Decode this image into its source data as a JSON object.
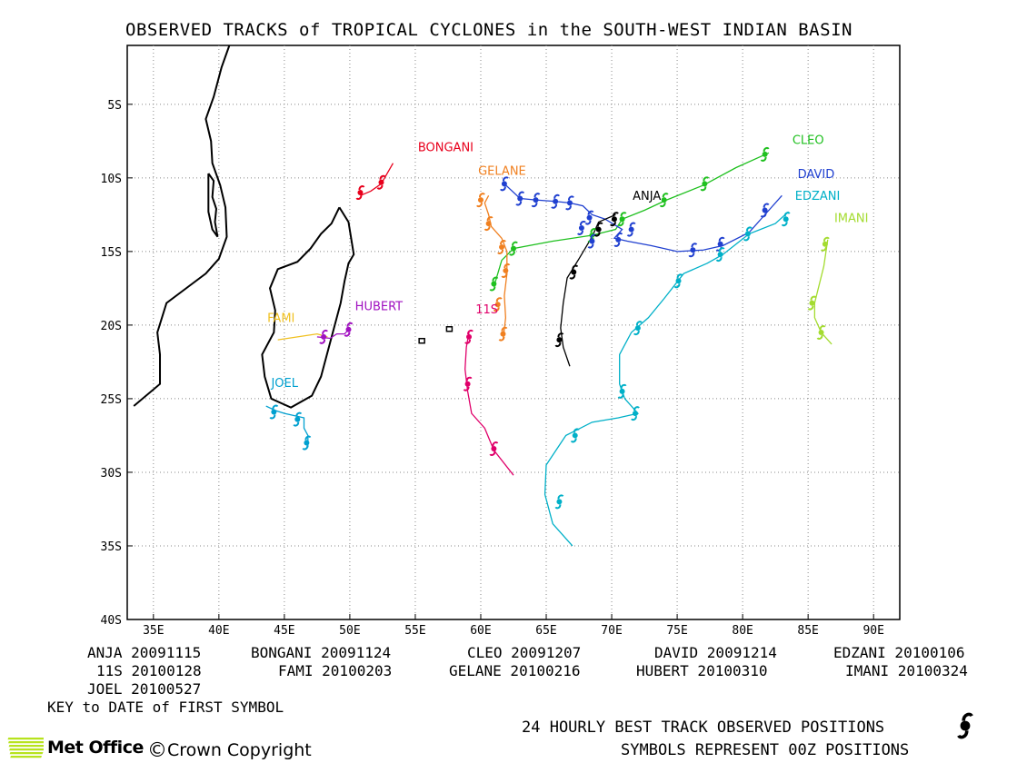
{
  "title": "OBSERVED TRACKS of TROPICAL CYCLONES in the SOUTH-WEST INDIAN BASIN",
  "map": {
    "lon_range": [
      33,
      92
    ],
    "lat_range": [
      -40,
      -1
    ],
    "x_ticks": [
      {
        "lon": 35,
        "label": "35E"
      },
      {
        "lon": 40,
        "label": "40E"
      },
      {
        "lon": 45,
        "label": "45E"
      },
      {
        "lon": 50,
        "label": "50E"
      },
      {
        "lon": 55,
        "label": "55E"
      },
      {
        "lon": 60,
        "label": "60E"
      },
      {
        "lon": 65,
        "label": "65E"
      },
      {
        "lon": 70,
        "label": "70E"
      },
      {
        "lon": 75,
        "label": "75E"
      },
      {
        "lon": 80,
        "label": "80E"
      },
      {
        "lon": 85,
        "label": "85E"
      },
      {
        "lon": 90,
        "label": "90E"
      }
    ],
    "y_ticks": [
      {
        "lat": -5,
        "label": "5S"
      },
      {
        "lat": -10,
        "label": "10S"
      },
      {
        "lat": -15,
        "label": "15S"
      },
      {
        "lat": -20,
        "label": "20S"
      },
      {
        "lat": -25,
        "label": "25S"
      },
      {
        "lat": -30,
        "label": "30S"
      },
      {
        "lat": -35,
        "label": "35S"
      },
      {
        "lat": -40,
        "label": "40S"
      }
    ],
    "grid": "dotted"
  },
  "storms": [
    {
      "name": "BONGANI",
      "color": "#e8001c",
      "label_lon": 55.2,
      "label_lat": -8.2,
      "track": [
        [
          50.8,
          -11.2
        ],
        [
          51.6,
          -10.9
        ],
        [
          52.4,
          -10.4
        ],
        [
          53.3,
          -9.0
        ]
      ],
      "positions": [
        [
          50.8,
          -11.0
        ],
        [
          52.4,
          -10.3
        ]
      ]
    },
    {
      "name": "CLEO",
      "color": "#1fc01f",
      "label_lon": 83.8,
      "label_lat": -7.7,
      "track": [
        [
          61.0,
          -17.4
        ],
        [
          61.6,
          -15.6
        ],
        [
          62.5,
          -14.8
        ],
        [
          65.5,
          -14.3
        ],
        [
          68.5,
          -13.9
        ],
        [
          70.3,
          -13.5
        ],
        [
          70.8,
          -12.8
        ],
        [
          72.5,
          -12.2
        ],
        [
          74.2,
          -11.5
        ],
        [
          77.0,
          -10.5
        ],
        [
          79.5,
          -9.3
        ],
        [
          81.5,
          -8.5
        ],
        [
          82.0,
          -8.3
        ]
      ],
      "positions": [
        [
          81.7,
          -8.4
        ],
        [
          77.1,
          -10.4
        ],
        [
          74.0,
          -11.5
        ],
        [
          70.8,
          -12.8
        ],
        [
          68.5,
          -13.9
        ],
        [
          62.5,
          -14.8
        ],
        [
          61.0,
          -17.2
        ]
      ]
    },
    {
      "name": "DAVID",
      "color": "#2040d0",
      "label_lon": 84.2,
      "label_lat": -10.0,
      "track": [
        [
          61.8,
          -10.4
        ],
        [
          63.0,
          -11.4
        ],
        [
          64.2,
          -11.5
        ],
        [
          65.7,
          -11.6
        ],
        [
          66.8,
          -11.7
        ],
        [
          67.8,
          -11.9
        ],
        [
          68.5,
          -12.5
        ],
        [
          69.5,
          -12.8
        ],
        [
          70.8,
          -13.5
        ],
        [
          70.2,
          -14.1
        ],
        [
          71.2,
          -14.3
        ],
        [
          73.0,
          -14.6
        ],
        [
          75.0,
          -15.0
        ],
        [
          77.0,
          -14.9
        ],
        [
          78.5,
          -14.6
        ],
        [
          80.5,
          -13.7
        ],
        [
          82.0,
          -12.2
        ],
        [
          83.0,
          -11.2
        ]
      ],
      "positions": [
        [
          61.8,
          -10.4
        ],
        [
          63.0,
          -11.4
        ],
        [
          64.2,
          -11.5
        ],
        [
          65.7,
          -11.6
        ],
        [
          66.8,
          -11.7
        ],
        [
          68.3,
          -12.7
        ],
        [
          67.7,
          -13.4
        ],
        [
          71.5,
          -13.5
        ],
        [
          70.5,
          -14.2
        ],
        [
          68.5,
          -14.3
        ],
        [
          76.2,
          -14.9
        ],
        [
          78.3,
          -14.5
        ],
        [
          81.7,
          -12.2
        ]
      ]
    },
    {
      "name": "EDZANI",
      "color": "#00b0c8",
      "label_lon": 84.0,
      "label_lat": -11.5,
      "track": [
        [
          67.0,
          -35.0
        ],
        [
          65.5,
          -33.5
        ],
        [
          64.9,
          -31.5
        ],
        [
          65.0,
          -29.5
        ],
        [
          66.5,
          -27.5
        ],
        [
          68.5,
          -26.6
        ],
        [
          70.5,
          -26.3
        ],
        [
          72.0,
          -26.0
        ],
        [
          71.0,
          -25.0
        ],
        [
          70.6,
          -24.0
        ],
        [
          70.6,
          -22.0
        ],
        [
          71.5,
          -20.5
        ],
        [
          72.8,
          -19.5
        ],
        [
          74.0,
          -18.2
        ],
        [
          75.5,
          -16.5
        ],
        [
          77.3,
          -15.8
        ],
        [
          78.5,
          -15.2
        ],
        [
          79.5,
          -14.5
        ],
        [
          80.5,
          -13.8
        ],
        [
          82.5,
          -13.1
        ],
        [
          83.5,
          -12.3
        ]
      ],
      "positions": [
        [
          66.0,
          -32.0
        ],
        [
          67.2,
          -27.5
        ],
        [
          71.8,
          -26.0
        ],
        [
          70.8,
          -24.5
        ],
        [
          72.0,
          -20.2
        ],
        [
          75.1,
          -17.0
        ],
        [
          78.3,
          -15.2
        ],
        [
          80.4,
          -13.8
        ],
        [
          83.3,
          -12.8
        ]
      ]
    },
    {
      "name": "IMANI",
      "color": "#a4dc30",
      "label_lon": 87.0,
      "label_lat": -13.0,
      "track": [
        [
          86.5,
          -14.2
        ],
        [
          86.2,
          -16.0
        ],
        [
          85.5,
          -18.5
        ],
        [
          85.5,
          -19.5
        ],
        [
          86.0,
          -20.5
        ],
        [
          86.8,
          -21.3
        ]
      ],
      "positions": [
        [
          86.3,
          -14.5
        ],
        [
          85.3,
          -18.5
        ],
        [
          86.0,
          -20.5
        ]
      ]
    },
    {
      "name": "GELANE",
      "color": "#f08020",
      "label_lon": 59.8,
      "label_lat": -9.8,
      "track": [
        [
          60.6,
          -11.2
        ],
        [
          60.3,
          -11.7
        ],
        [
          60.6,
          -12.5
        ],
        [
          60.8,
          -13.3
        ],
        [
          61.6,
          -14.1
        ],
        [
          62.0,
          -15.0
        ],
        [
          62.0,
          -16.5
        ],
        [
          61.8,
          -18.0
        ],
        [
          61.9,
          -19.5
        ],
        [
          61.7,
          -21.0
        ]
      ],
      "positions": [
        [
          60.0,
          -11.5
        ],
        [
          60.6,
          -13.1
        ],
        [
          61.6,
          -14.7
        ],
        [
          61.9,
          -16.3
        ],
        [
          61.3,
          -18.6
        ],
        [
          61.7,
          -20.6
        ]
      ]
    },
    {
      "name": "ANJA",
      "color": "#000000",
      "label_lon": 71.6,
      "label_lat": -11.5,
      "track": [
        [
          70.3,
          -12.5
        ],
        [
          69.0,
          -13.0
        ],
        [
          68.5,
          -14.0
        ],
        [
          67.5,
          -15.5
        ],
        [
          66.6,
          -16.8
        ],
        [
          66.3,
          -18.5
        ],
        [
          66.1,
          -20.2
        ],
        [
          66.3,
          -21.5
        ],
        [
          66.8,
          -22.8
        ]
      ],
      "positions": [
        [
          70.2,
          -12.8
        ],
        [
          69.0,
          -13.5
        ],
        [
          67.1,
          -16.4
        ],
        [
          66.0,
          -21.0
        ]
      ]
    },
    {
      "name": "11S",
      "color": "#e0006a",
      "label_lon": 59.6,
      "label_lat": -19.2,
      "track": [
        [
          59.1,
          -20.5
        ],
        [
          58.9,
          -21.5
        ],
        [
          58.8,
          -23.0
        ],
        [
          59.0,
          -24.5
        ],
        [
          59.3,
          -26.0
        ],
        [
          60.3,
          -27.0
        ],
        [
          61.0,
          -28.5
        ],
        [
          62.5,
          -30.2
        ]
      ],
      "positions": [
        [
          59.1,
          -20.8
        ],
        [
          59.0,
          -24.0
        ],
        [
          61.0,
          -28.4
        ]
      ]
    },
    {
      "name": "FAMI",
      "color": "#f0c020",
      "label_lon": 43.7,
      "label_lat": -19.8,
      "track": [
        [
          44.5,
          -21.0
        ],
        [
          47.5,
          -20.6
        ],
        [
          48.3,
          -20.8
        ]
      ],
      "positions": []
    },
    {
      "name": "HUBERT",
      "color": "#a010c0",
      "label_lon": 50.4,
      "label_lat": -19.0,
      "track": [
        [
          47.5,
          -20.8
        ],
        [
          48.5,
          -20.9
        ],
        [
          49.0,
          -20.6
        ],
        [
          49.6,
          -20.6
        ],
        [
          50.0,
          -20.2
        ]
      ],
      "positions": [
        [
          48.0,
          -20.8
        ],
        [
          49.9,
          -20.3
        ]
      ]
    },
    {
      "name": "JOEL",
      "color": "#00a0d0",
      "label_lon": 44.0,
      "label_lat": -24.2,
      "track": [
        [
          43.6,
          -25.5
        ],
        [
          44.3,
          -25.8
        ],
        [
          45.0,
          -26.0
        ],
        [
          46.0,
          -26.2
        ],
        [
          46.5,
          -26.3
        ],
        [
          46.5,
          -27.0
        ],
        [
          46.8,
          -27.5
        ],
        [
          46.8,
          -28.3
        ]
      ],
      "positions": [
        [
          44.2,
          -25.9
        ],
        [
          46.0,
          -26.4
        ],
        [
          46.7,
          -28.0
        ]
      ]
    }
  ],
  "legend": {
    "rows": [
      [
        "ANJA 20091115",
        "BONGANI 20091124",
        "CLEO 20091207",
        "DAVID 20091214",
        "EDZANI 20100106"
      ],
      [
        "11S 20100128",
        "FAMI 20100203",
        "GELANE 20100216",
        "HUBERT 20100310",
        "IMANI 20100324"
      ],
      [
        "JOEL 20100527"
      ]
    ],
    "key_note": "KEY to DATE of FIRST SYMBOL"
  },
  "footer": {
    "logo_text": "Met Office",
    "copyright": "Crown Copyright",
    "copyright_symbol": "©",
    "note1": "24 HOURLY BEST TRACK OBSERVED POSITIONS",
    "note2": "SYMBOLS REPRESENT 00Z POSITIONS",
    "logo_color": "#b7e31d"
  }
}
